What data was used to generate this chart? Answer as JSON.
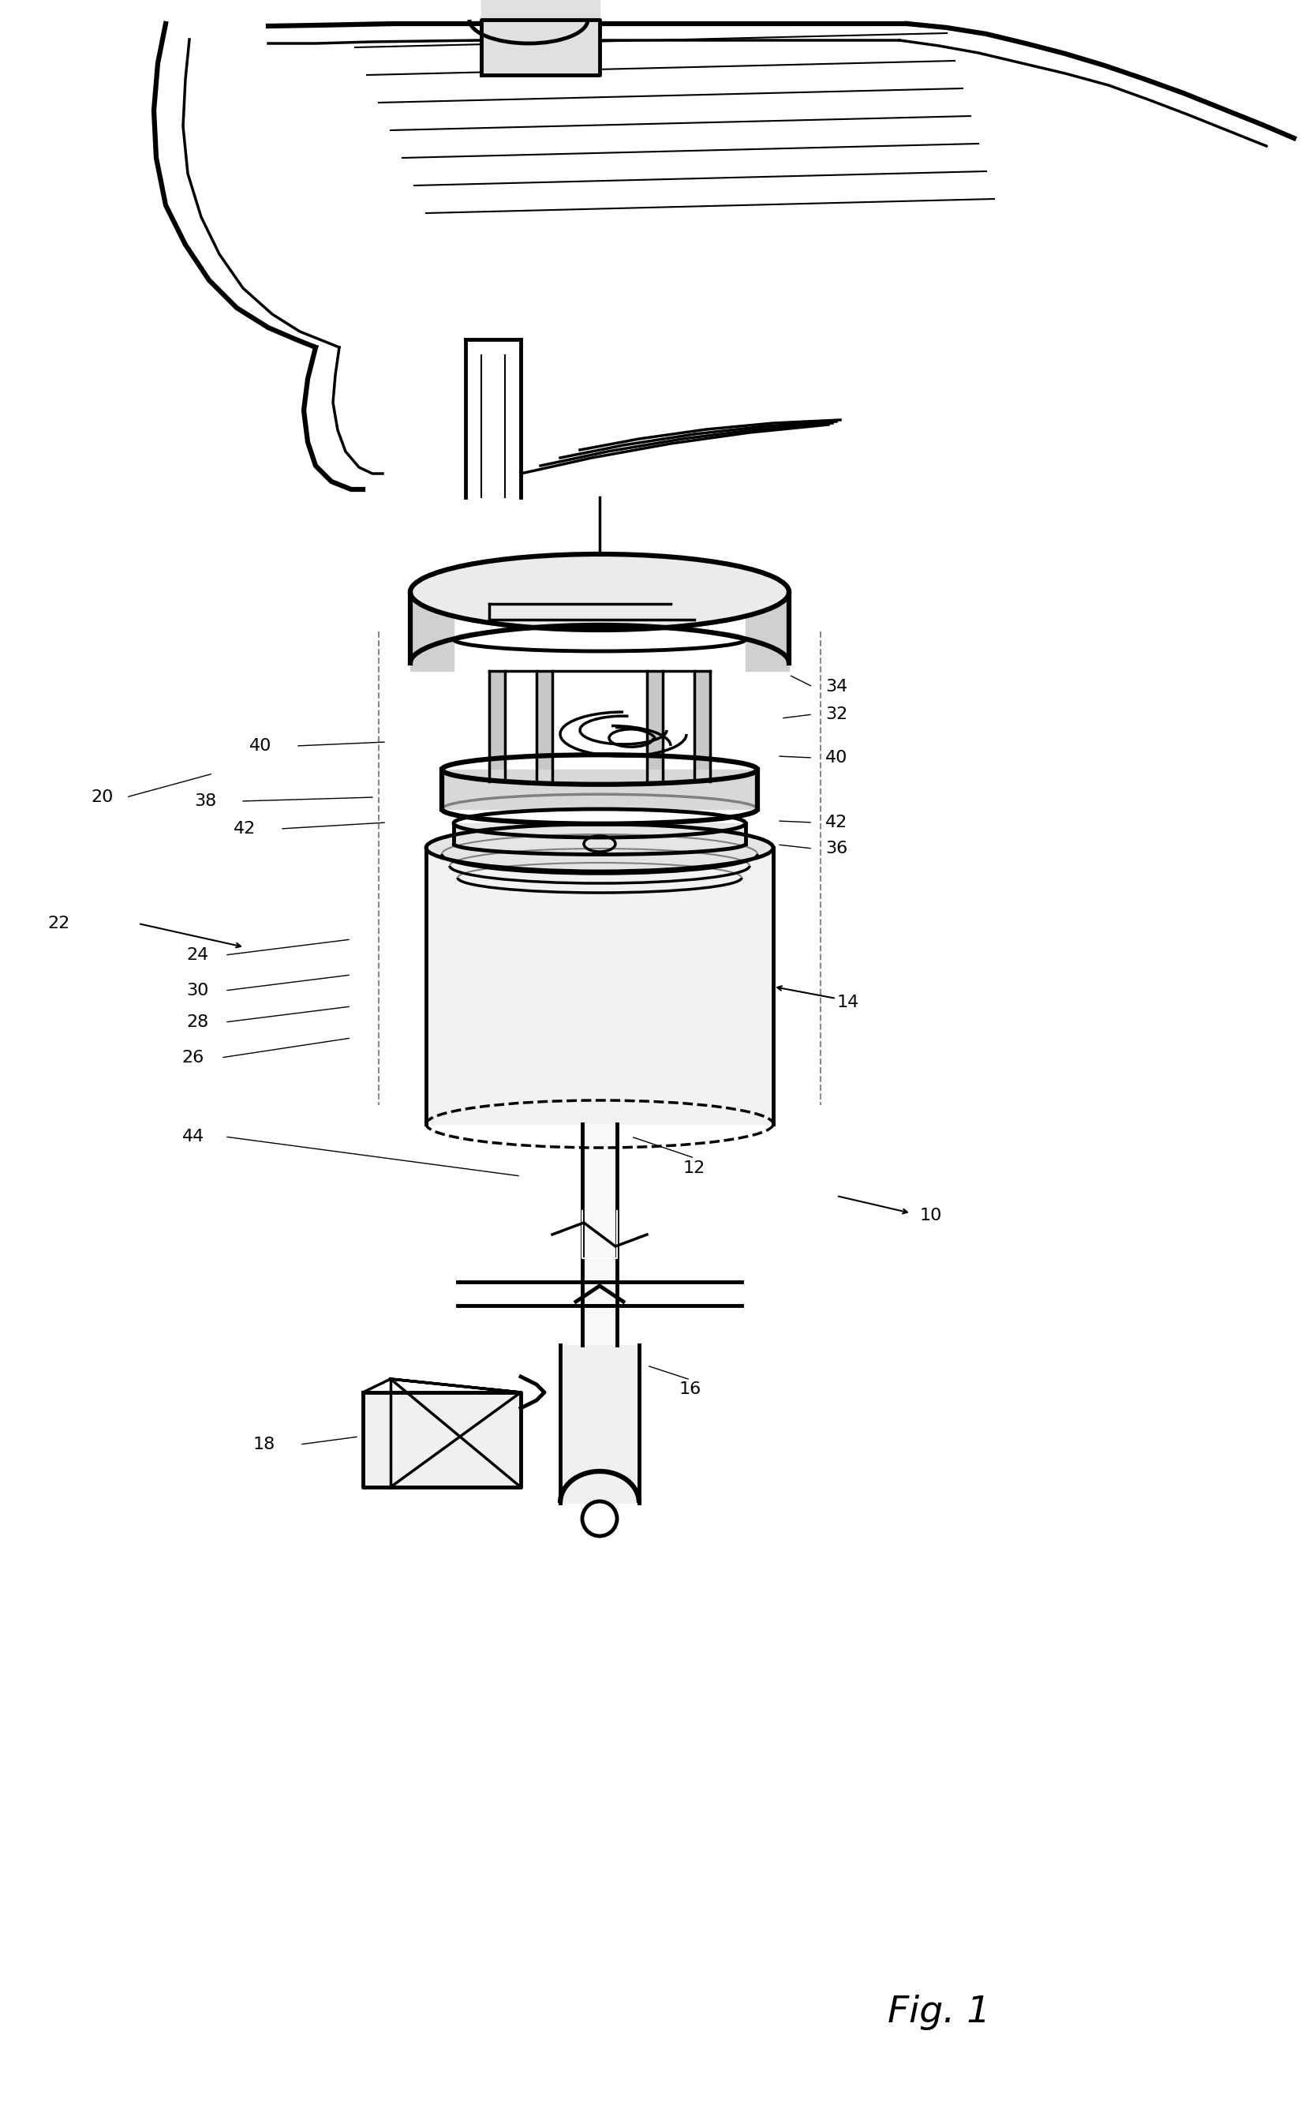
{
  "fig_label": "Fig. 1",
  "background_color": "#ffffff",
  "line_color": "#000000",
  "fig_width": 16.54,
  "fig_height": 26.82
}
